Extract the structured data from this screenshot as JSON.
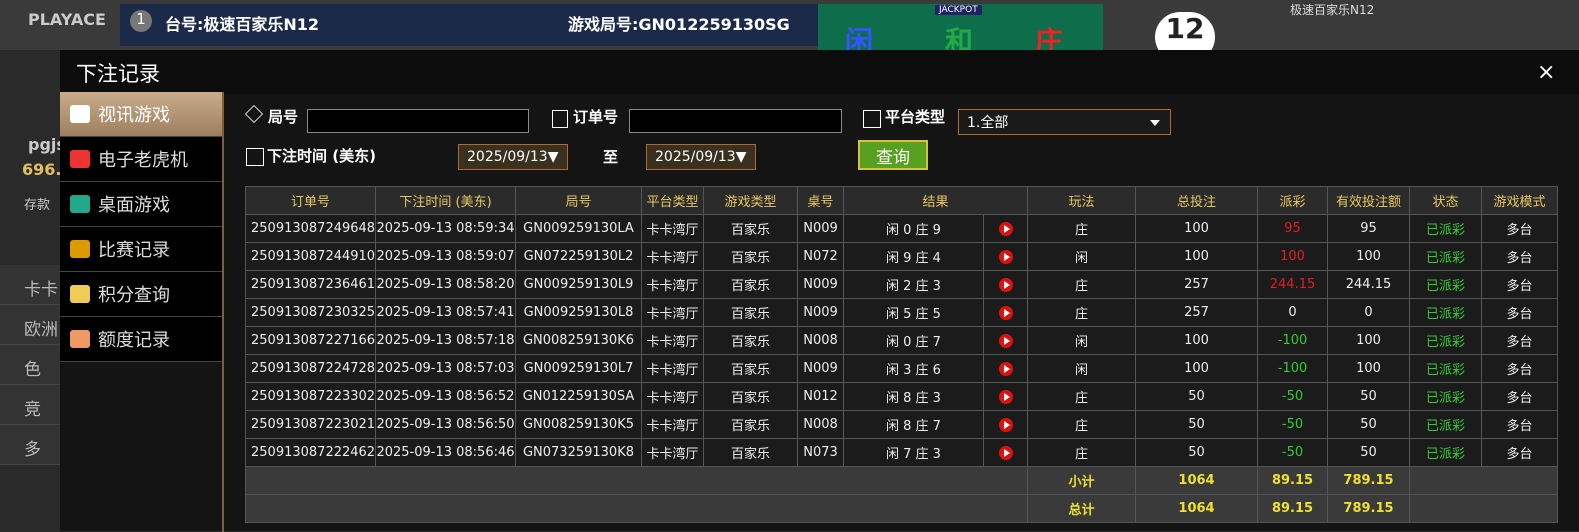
{
  "background": {
    "logo": "PLAYACE",
    "table_no": "1",
    "table_name": "台号:极速百家乐N12",
    "round": "游戏局号:GN012259130SG",
    "bets": [
      "闲",
      "和",
      "庄"
    ],
    "jackpot": "JACKPOT",
    "count": "12",
    "room": "极速百家乐N12",
    "user": "pgjs",
    "balance": "696.",
    "deposit": "存款",
    "side": [
      "卡卡",
      "欧洲",
      "色",
      "竞",
      "多"
    ]
  },
  "dialog": {
    "title": "下注记录",
    "close": "×",
    "menu": [
      "视讯游戏",
      "电子老虎机",
      "桌面游戏",
      "比赛记录",
      "积分查询",
      "额度记录"
    ],
    "filters": {
      "round_label": "局号",
      "order_label": "订单号",
      "platform_label": "平台类型",
      "platform_value": "1.全部",
      "time_label": "下注时间 (美东)",
      "start": "2025/09/13▼",
      "to": "至",
      "end": "2025/09/13▼",
      "query": "查询"
    },
    "table": {
      "headers": [
        "订单号",
        "下注时间 (美东)",
        "局号",
        "平台类型",
        "游戏类型",
        "桌号",
        "结果",
        "玩法",
        "总投注",
        "派彩",
        "有效投注额",
        "状态",
        "游戏模式"
      ],
      "rows": [
        [
          "250913087249648",
          "2025-09-13 08:59:34",
          "GN009259130LA",
          "卡卡湾厅",
          "百家乐",
          "N009",
          "闲 0 庄 9",
          "庄",
          "100",
          "95",
          "95",
          "已派彩",
          "多台"
        ],
        [
          "250913087244910",
          "2025-09-13 08:59:07",
          "GN072259130L2",
          "卡卡湾厅",
          "百家乐",
          "N072",
          "闲 9 庄 4",
          "闲",
          "100",
          "100",
          "100",
          "已派彩",
          "多台"
        ],
        [
          "250913087236461",
          "2025-09-13 08:58:20",
          "GN009259130L9",
          "卡卡湾厅",
          "百家乐",
          "N009",
          "闲 2 庄 3",
          "庄",
          "257",
          "244.15",
          "244.15",
          "已派彩",
          "多台"
        ],
        [
          "250913087230325",
          "2025-09-13 08:57:41",
          "GN009259130L8",
          "卡卡湾厅",
          "百家乐",
          "N009",
          "闲 5 庄 5",
          "庄",
          "257",
          "0",
          "0",
          "已派彩",
          "多台"
        ],
        [
          "250913087227166",
          "2025-09-13 08:57:18",
          "GN008259130K6",
          "卡卡湾厅",
          "百家乐",
          "N008",
          "闲 0 庄 7",
          "闲",
          "100",
          "-100",
          "100",
          "已派彩",
          "多台"
        ],
        [
          "250913087224728",
          "2025-09-13 08:57:03",
          "GN009259130L7",
          "卡卡湾厅",
          "百家乐",
          "N009",
          "闲 3 庄 6",
          "闲",
          "100",
          "-100",
          "100",
          "已派彩",
          "多台"
        ],
        [
          "250913087223302",
          "2025-09-13 08:56:52",
          "GN012259130SA",
          "卡卡湾厅",
          "百家乐",
          "N012",
          "闲 8 庄 3",
          "庄",
          "50",
          "-50",
          "50",
          "已派彩",
          "多台"
        ],
        [
          "250913087223021",
          "2025-09-13 08:56:50",
          "GN008259130K5",
          "卡卡湾厅",
          "百家乐",
          "N008",
          "闲 8 庄 7",
          "庄",
          "50",
          "-50",
          "50",
          "已派彩",
          "多台"
        ],
        [
          "250913087222462",
          "2025-09-13 08:56:46",
          "GN073259130K8",
          "卡卡湾厅",
          "百家乐",
          "N073",
          "闲 7 庄 3",
          "庄",
          "50",
          "-50",
          "50",
          "已派彩",
          "多台"
        ]
      ],
      "subtotal": {
        "label": "小计",
        "total_bet": "1064",
        "payout": "89.15",
        "valid_bet": "789.15"
      },
      "total": {
        "label": "总计",
        "total_bet": "1064",
        "payout": "89.15",
        "valid_bet": "789.15"
      }
    }
  }
}
